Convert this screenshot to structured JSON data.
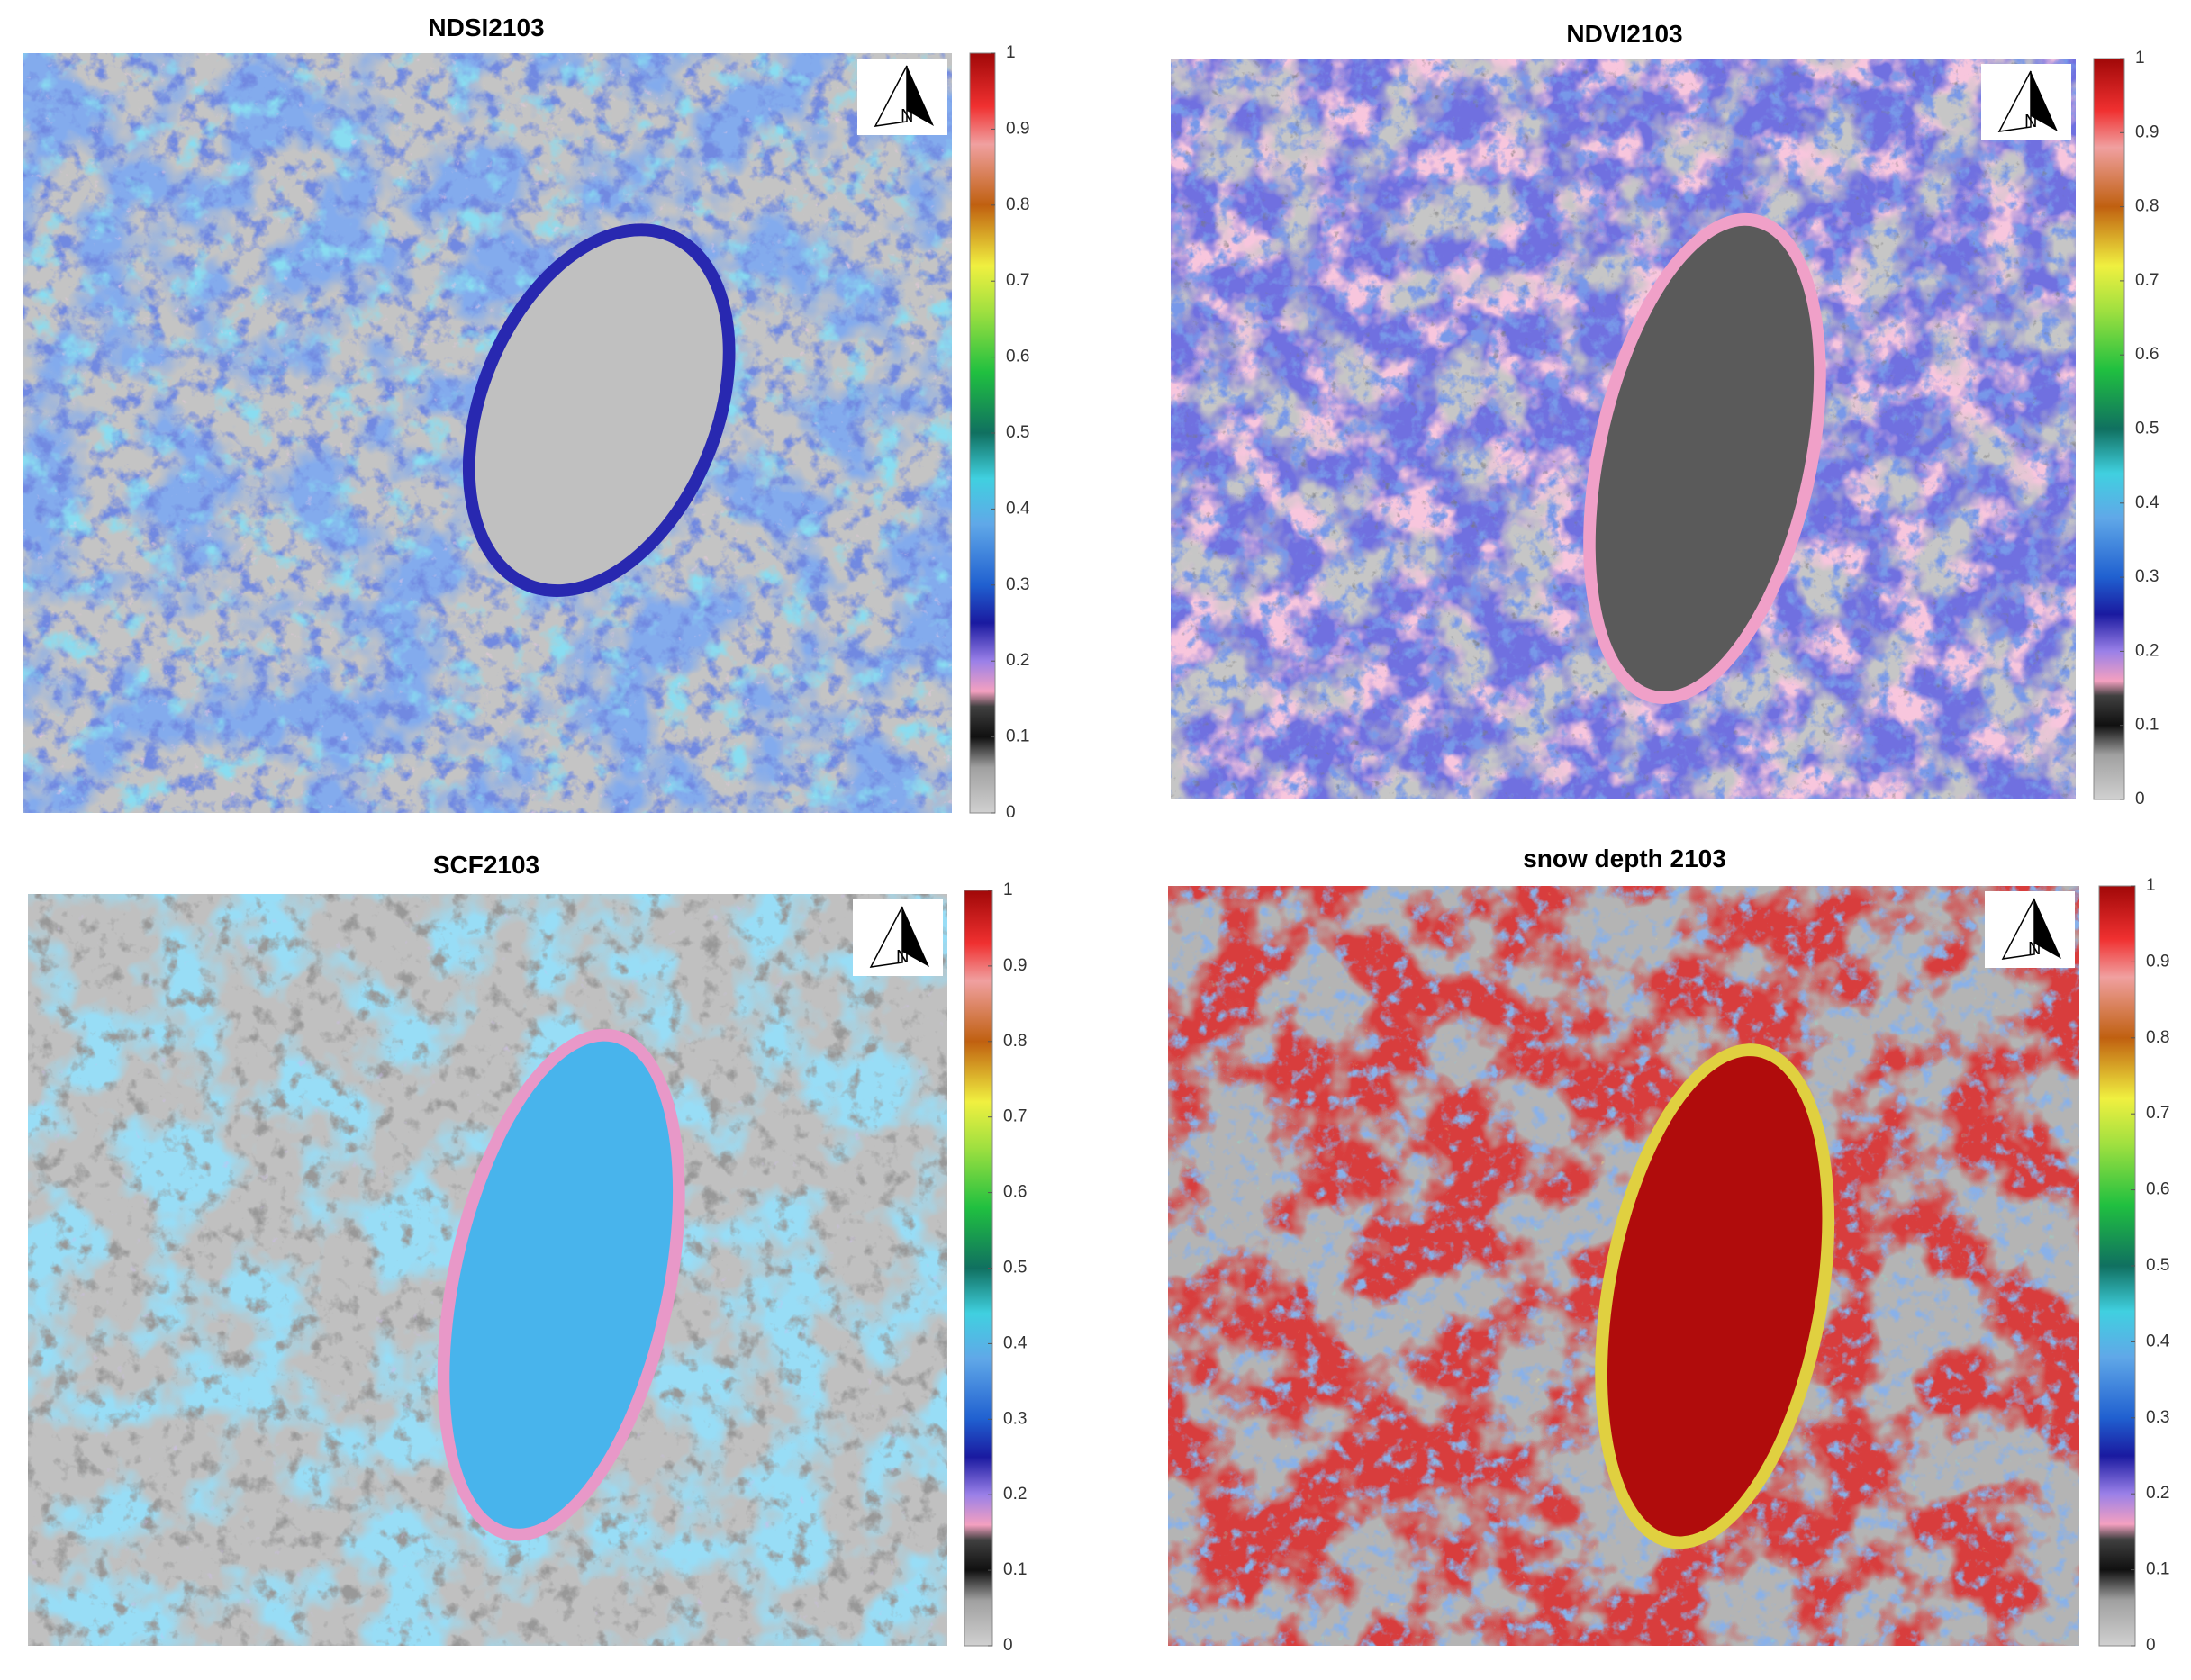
{
  "panels": [
    {
      "title": "NDSI2103",
      "north_label": "N",
      "colorbar": {
        "lim": [
          0,
          1
        ],
        "ticks": [
          0,
          0.1,
          0.2,
          0.3,
          0.4,
          0.5,
          0.6,
          0.7,
          0.8,
          0.9,
          1
        ]
      }
    },
    {
      "title": "NDVI2103",
      "north_label": "N",
      "colorbar": {
        "lim": [
          0,
          1
        ],
        "ticks": [
          0,
          0.1,
          0.2,
          0.3,
          0.4,
          0.5,
          0.6,
          0.7,
          0.8,
          0.9,
          1
        ]
      }
    },
    {
      "title": "SCF2103",
      "north_label": "N",
      "colorbar": {
        "lim": [
          0,
          1
        ],
        "ticks": [
          0,
          0.1,
          0.2,
          0.3,
          0.4,
          0.5,
          0.6,
          0.7,
          0.8,
          0.9,
          1
        ]
      }
    },
    {
      "title": "snow depth 2103",
      "north_label": "N",
      "colorbar": {
        "lim": [
          0,
          1
        ],
        "ticks": [
          0,
          0.1,
          0.2,
          0.3,
          0.4,
          0.5,
          0.6,
          0.7,
          0.8,
          0.9,
          1
        ]
      }
    }
  ]
}
